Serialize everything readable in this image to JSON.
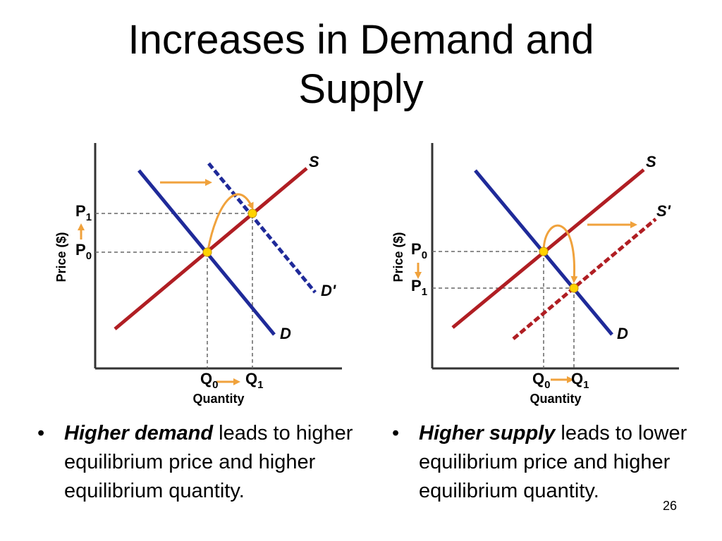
{
  "slide": {
    "title_line1": "Increases in Demand and",
    "title_line2": "Supply",
    "page_number": "26"
  },
  "colors": {
    "supply_curve": "#b01e23",
    "demand_curve": "#1f2a99",
    "arrow": "#f0a23c",
    "equilibrium_point": "#ffd200",
    "axis": "#333333",
    "guide": "#666666"
  },
  "charts": [
    {
      "id": "demand-increase",
      "y_axis_label": "Price ($)",
      "x_axis_label": "Quantity",
      "curves": [
        {
          "label": "S",
          "style": "solid",
          "role": "supply"
        },
        {
          "label": "D",
          "style": "solid",
          "role": "demand"
        },
        {
          "label": "D'",
          "style": "dashed",
          "role": "demand-shifted"
        }
      ],
      "price_labels": [
        {
          "base": "P",
          "sub": "1"
        },
        {
          "base": "P",
          "sub": "0"
        }
      ],
      "quantity_labels": [
        {
          "base": "Q",
          "sub": "0"
        },
        {
          "base": "Q",
          "sub": "1"
        }
      ],
      "price_change": "up",
      "quantity_change": "right"
    },
    {
      "id": "supply-increase",
      "y_axis_label": "Price ($)",
      "x_axis_label": "Quantity",
      "curves": [
        {
          "label": "S",
          "style": "solid",
          "role": "supply"
        },
        {
          "label": "S'",
          "style": "dashed",
          "role": "supply-shifted"
        },
        {
          "label": "D",
          "style": "solid",
          "role": "demand"
        }
      ],
      "price_labels": [
        {
          "base": "P",
          "sub": "0"
        },
        {
          "base": "P",
          "sub": "1"
        }
      ],
      "quantity_labels": [
        {
          "base": "Q",
          "sub": "0"
        },
        {
          "base": "Q",
          "sub": "1"
        }
      ],
      "price_change": "down",
      "quantity_change": "right"
    }
  ],
  "bullets": [
    {
      "marker": "•",
      "emphasis": "Higher demand",
      "rest": " leads to higher equilibrium price and higher equilibrium quantity."
    },
    {
      "marker": "•",
      "emphasis": "Higher supply",
      "rest": " leads to lower equilibrium price and higher equilibrium quantity."
    }
  ]
}
